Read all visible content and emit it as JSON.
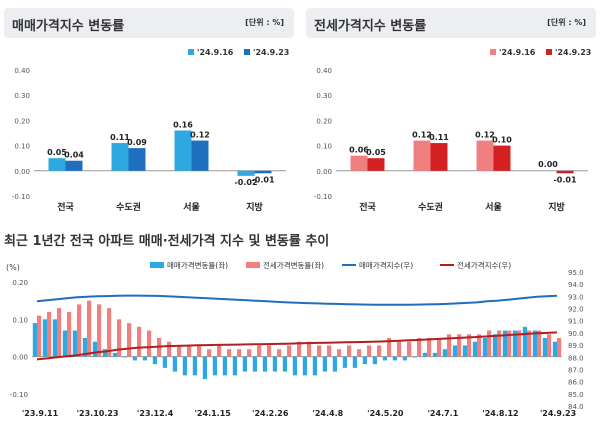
{
  "colors": {
    "sale_prev": "#2ea8e0",
    "sale_curr": "#1f6fbf",
    "jeonse_prev": "#f08080",
    "jeonse_curr": "#d32020",
    "sale_index_line": "#1f6fbf",
    "jeonse_index_line": "#b02020"
  },
  "chart_data": [
    {
      "type": "bar",
      "title": "매매가격지수 변동률",
      "unit": "[단위 : %]",
      "categories": [
        "전국",
        "수도권",
        "서울",
        "지방"
      ],
      "series": [
        {
          "name": "'24.9.16",
          "values": [
            0.05,
            0.11,
            0.16,
            -0.02
          ]
        },
        {
          "name": "'24.9.23",
          "values": [
            0.04,
            0.09,
            0.12,
            -0.01
          ]
        }
      ],
      "value_labels": [
        [
          "0.05",
          "0.11",
          "0.16",
          "-0.02"
        ],
        [
          "0.04",
          "0.09",
          "0.12",
          "-0.01"
        ]
      ],
      "yticks": [
        "0.40",
        "0.30",
        "0.20",
        "0.10",
        "0.00",
        "-0.10"
      ],
      "ylim": [
        -0.1,
        0.4
      ],
      "legend": "top-right"
    },
    {
      "type": "bar",
      "title": "전세가격지수 변동률",
      "unit": "[단위 : %]",
      "categories": [
        "전국",
        "수도권",
        "서울",
        "지방"
      ],
      "series": [
        {
          "name": "'24.9.16",
          "values": [
            0.06,
            0.12,
            0.12,
            0.0
          ]
        },
        {
          "name": "'24.9.23",
          "values": [
            0.05,
            0.11,
            0.1,
            -0.01
          ]
        }
      ],
      "value_labels": [
        [
          "0.06",
          "0.12",
          "0.12",
          "0.00"
        ],
        [
          "0.05",
          "0.11",
          "0.10",
          "-0.01"
        ]
      ],
      "yticks": [
        "0.40",
        "0.30",
        "0.20",
        "0.10",
        "0.00",
        "-0.10"
      ],
      "ylim": [
        -0.1,
        0.4
      ],
      "legend": "top-right"
    },
    {
      "type": "bar+line",
      "title": "최근 1년간 전국 아파트 매매·전세가격 지수 및 변동률 추이",
      "left_axis_label": "(%)",
      "left_yticks": [
        "0.20",
        "0.10",
        "0.00",
        "-0.10"
      ],
      "left_ylim": [
        -0.1,
        0.2
      ],
      "right_yticks": [
        "95.0",
        "94.0",
        "93.0",
        "92.0",
        "91.0",
        "90.0",
        "89.0",
        "88.0",
        "87.0",
        "86.0",
        "85.0",
        "84.0"
      ],
      "right_ylim": [
        84.0,
        95.0
      ],
      "xtick_labels": [
        "'23.9.11",
        "'23.10.23",
        "'23.12.4",
        "'24.1.15",
        "'24.2.26",
        "'24.4.8",
        "'24.5.20",
        "'24.7.1",
        "'24.8.12",
        "'24.9.23"
      ],
      "legend": [
        "매매가격변동률(좌)",
        "전세가격변동률(좌)",
        "매매가격지수(우)",
        "전세가격지수(우)"
      ],
      "sale_change": [
        0.09,
        0.1,
        0.1,
        0.07,
        0.07,
        0.05,
        0.04,
        0.02,
        0.01,
        0.0,
        -0.01,
        -0.01,
        -0.02,
        -0.03,
        -0.04,
        -0.05,
        -0.05,
        -0.06,
        -0.05,
        -0.05,
        -0.05,
        -0.04,
        -0.04,
        -0.04,
        -0.04,
        -0.04,
        -0.05,
        -0.05,
        -0.05,
        -0.04,
        -0.04,
        -0.03,
        -0.03,
        -0.02,
        -0.02,
        -0.01,
        -0.01,
        -0.01,
        0.0,
        0.01,
        0.01,
        0.02,
        0.03,
        0.03,
        0.04,
        0.05,
        0.06,
        0.07,
        0.07,
        0.08,
        0.07,
        0.05,
        0.04
      ],
      "jeonse_change": [
        0.11,
        0.12,
        0.13,
        0.12,
        0.14,
        0.15,
        0.14,
        0.13,
        0.1,
        0.09,
        0.08,
        0.07,
        0.05,
        0.04,
        0.03,
        0.03,
        0.03,
        0.02,
        0.03,
        0.02,
        0.02,
        0.02,
        0.03,
        0.03,
        0.02,
        0.03,
        0.04,
        0.04,
        0.03,
        0.03,
        0.02,
        0.03,
        0.02,
        0.03,
        0.03,
        0.05,
        0.04,
        0.04,
        0.05,
        0.05,
        0.05,
        0.06,
        0.06,
        0.06,
        0.06,
        0.07,
        0.07,
        0.07,
        0.07,
        0.07,
        0.07,
        0.06,
        0.05
      ],
      "sale_index": [
        93.1,
        93.2,
        93.3,
        93.4,
        93.5,
        93.55,
        93.6,
        93.62,
        93.65,
        93.66,
        93.66,
        93.65,
        93.63,
        93.6,
        93.55,
        93.5,
        93.45,
        93.4,
        93.35,
        93.3,
        93.25,
        93.2,
        93.15,
        93.1,
        93.05,
        93.0,
        92.97,
        92.93,
        92.9,
        92.87,
        92.85,
        92.82,
        92.8,
        92.78,
        92.77,
        92.76,
        92.76,
        92.77,
        92.78,
        92.8,
        92.82,
        92.85,
        92.9,
        92.95,
        93.0,
        93.1,
        93.15,
        93.25,
        93.35,
        93.45,
        93.55,
        93.6,
        93.65
      ],
      "jeonse_index": [
        87.4,
        87.5,
        87.6,
        87.7,
        87.8,
        87.95,
        88.1,
        88.2,
        88.35,
        88.45,
        88.55,
        88.6,
        88.65,
        88.7,
        88.72,
        88.75,
        88.78,
        88.8,
        88.82,
        88.84,
        88.85,
        88.87,
        88.89,
        88.9,
        88.92,
        88.94,
        88.97,
        89.0,
        89.02,
        89.04,
        89.06,
        89.08,
        89.1,
        89.12,
        89.15,
        89.18,
        89.22,
        89.26,
        89.3,
        89.35,
        89.4,
        89.45,
        89.5,
        89.55,
        89.6,
        89.66,
        89.72,
        89.78,
        89.84,
        89.9,
        89.96,
        90.0,
        90.05
      ]
    }
  ]
}
